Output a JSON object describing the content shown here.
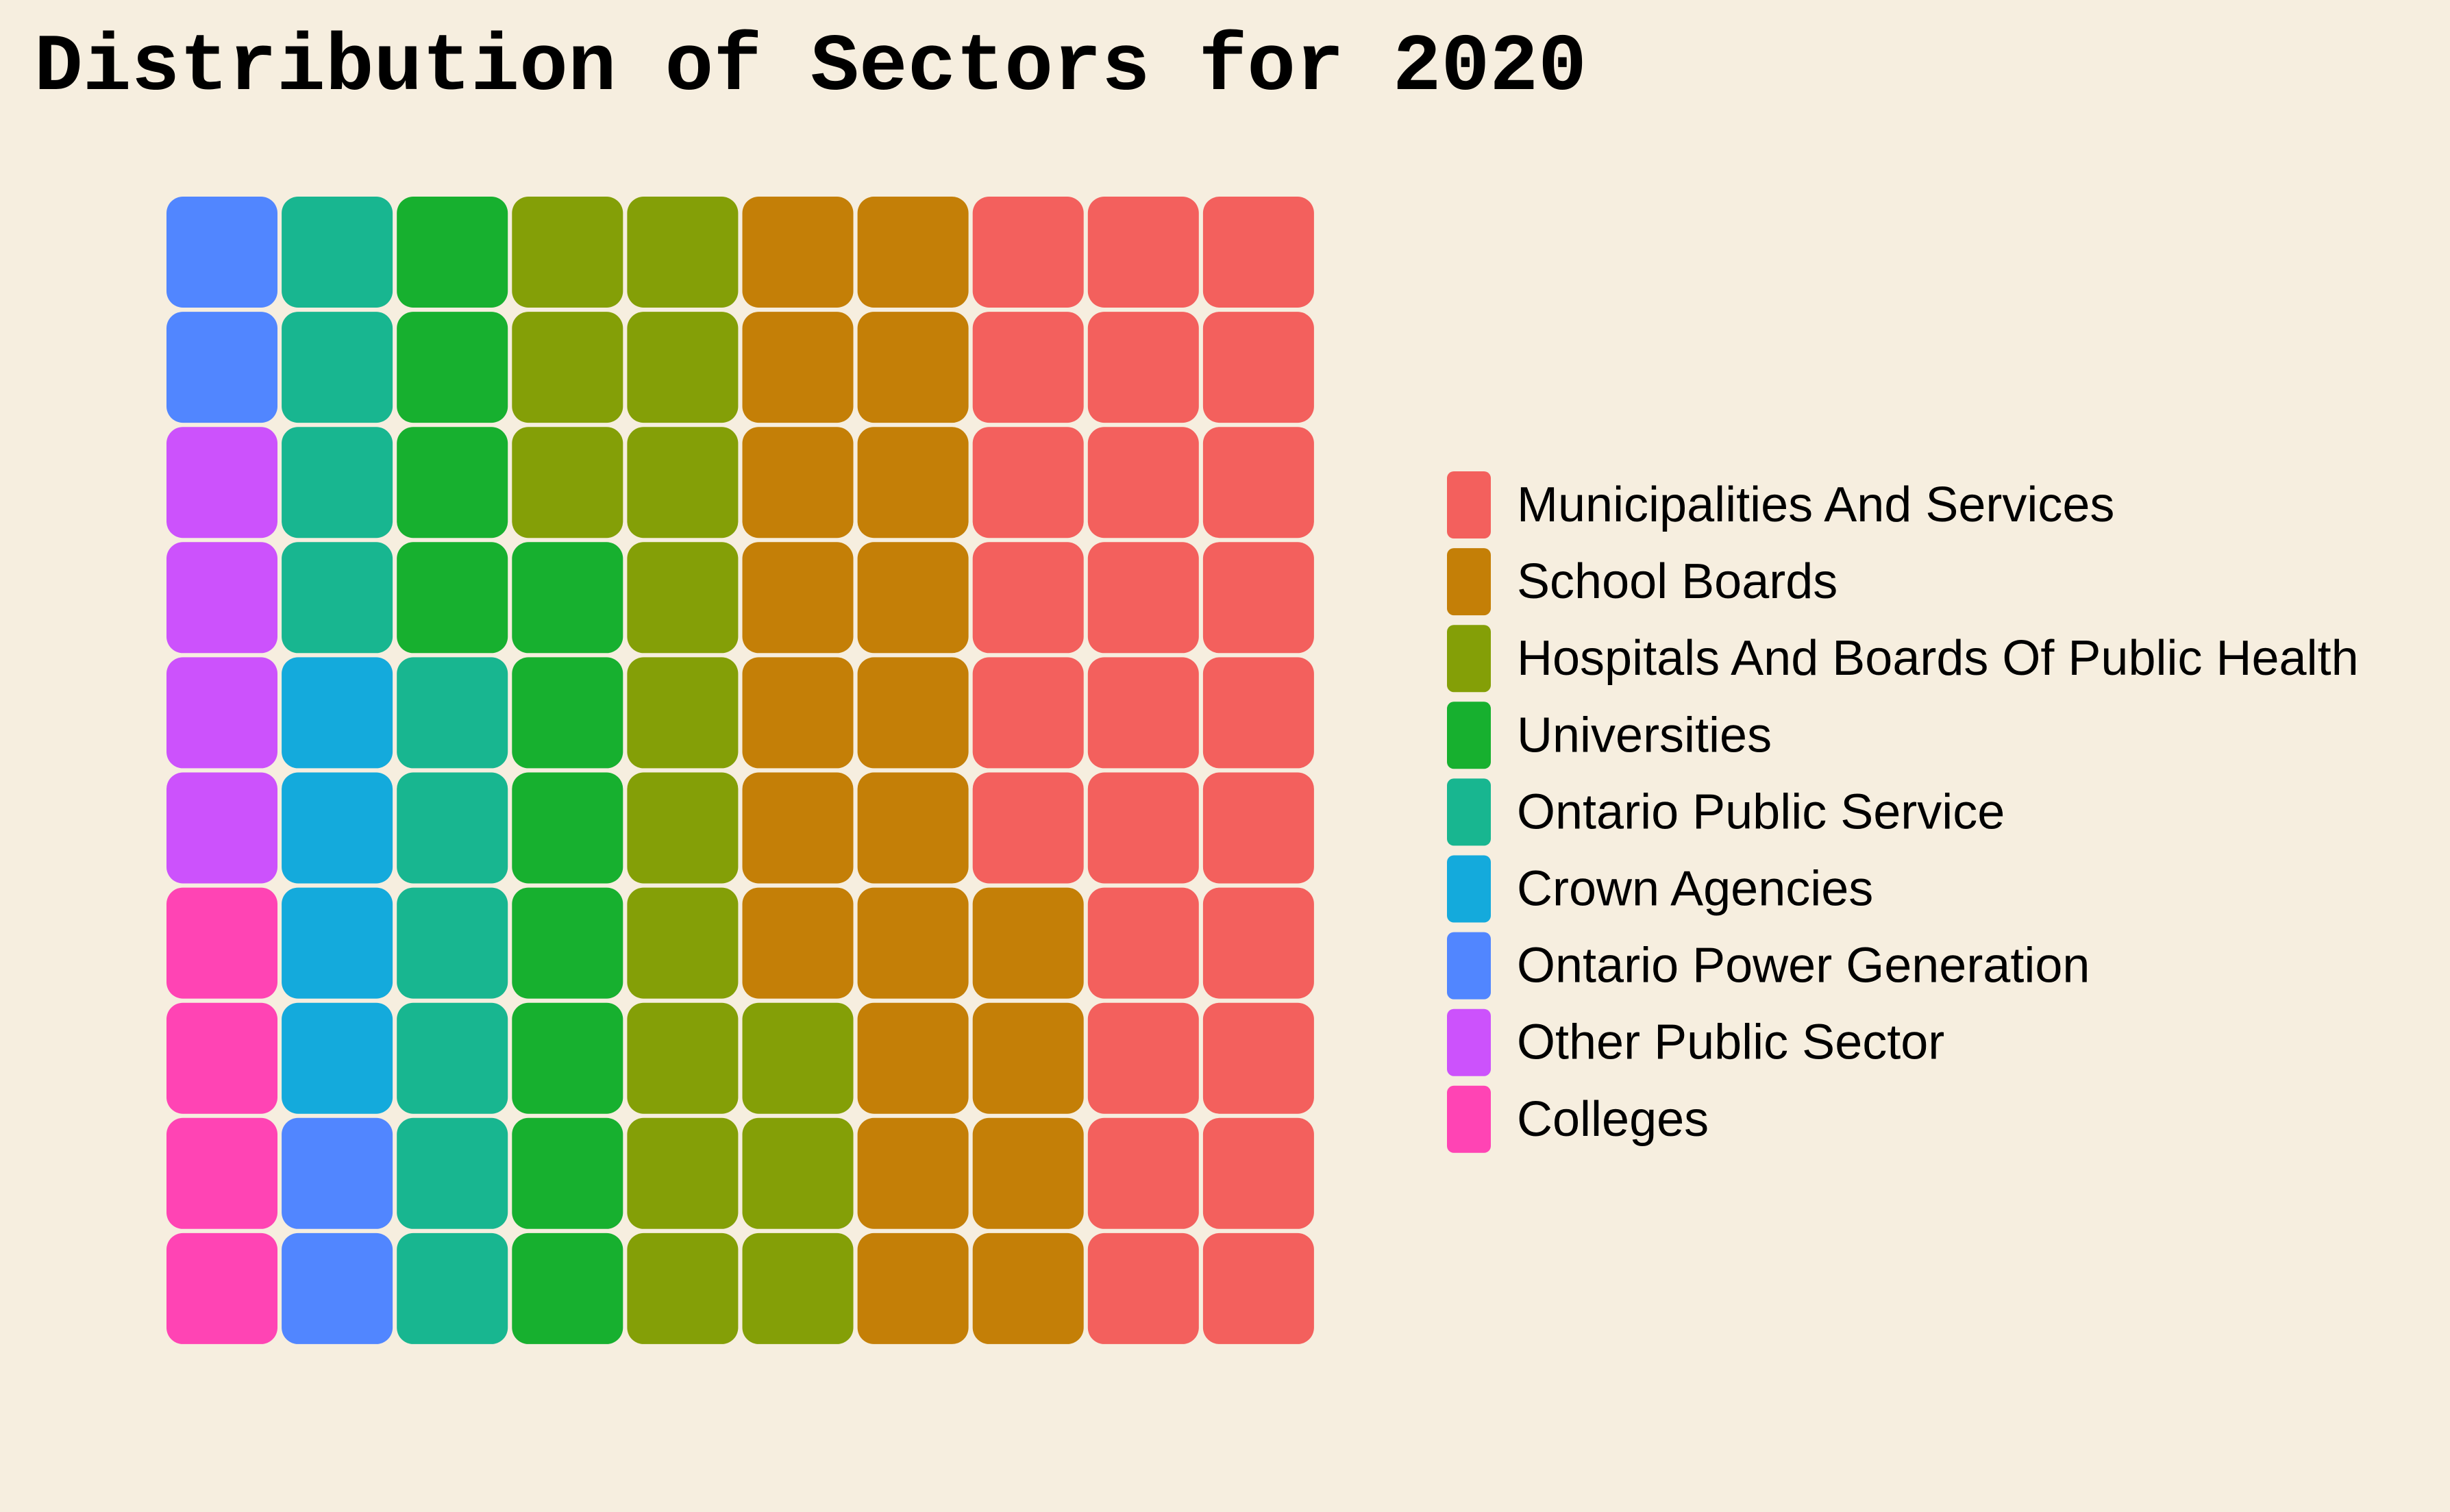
{
  "chart_data": {
    "type": "waffle",
    "title": "Distribution of Sectors for 2020",
    "grid": {
      "rows": 10,
      "cols": 10
    },
    "fill_order": "column-major from bottom-left",
    "legend_position": "right",
    "series": [
      {
        "name": "Colleges",
        "value": 4,
        "color": "#FF44B4"
      },
      {
        "name": "Other Public Sector",
        "value": 4,
        "color": "#CC52FC"
      },
      {
        "name": "Ontario Power Generation",
        "value": 4,
        "color": "#5186FF"
      },
      {
        "name": "Crown Agencies",
        "value": 4,
        "color": "#14AADC"
      },
      {
        "name": "Ontario Public Service",
        "value": 10,
        "color": "#18B690"
      },
      {
        "name": "Universities",
        "value": 11,
        "color": "#17B02F"
      },
      {
        "name": "Hospitals And Boards Of Public Health",
        "value": 16,
        "color": "#849F07"
      },
      {
        "name": "School Boards",
        "value": 21,
        "color": "#C47F07"
      },
      {
        "name": "Municipalities And Services",
        "value": 26,
        "color": "#F3605D"
      }
    ],
    "legend": [
      {
        "label": "Municipalities And Services",
        "color": "#F3605D"
      },
      {
        "label": "School Boards",
        "color": "#C47F07"
      },
      {
        "label": "Hospitals And Boards Of Public Health",
        "color": "#849F07"
      },
      {
        "label": "Universities",
        "color": "#17B02F"
      },
      {
        "label": "Ontario Public Service",
        "color": "#18B690"
      },
      {
        "label": "Crown Agencies",
        "color": "#14AADC"
      },
      {
        "label": "Ontario Power Generation",
        "color": "#5186FF"
      },
      {
        "label": "Other Public Sector",
        "color": "#CC52FC"
      },
      {
        "label": "Colleges",
        "color": "#FF44B4"
      }
    ]
  },
  "colors": {
    "background": "#F6EEDF",
    "text": "#000000"
  }
}
